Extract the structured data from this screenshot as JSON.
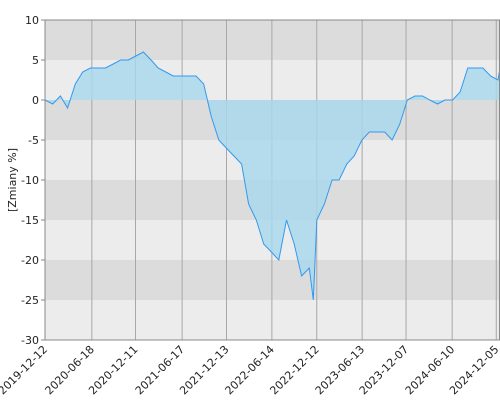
{
  "chart_data": {
    "type": "area",
    "y_label": "[Zmiany %]",
    "x": [
      "2019-12-12",
      "2020-01-12",
      "2020-02-12",
      "2020-03-12",
      "2020-04-12",
      "2020-05-12",
      "2020-06-12",
      "2020-07-12",
      "2020-08-12",
      "2020-09-12",
      "2020-10-12",
      "2020-11-12",
      "2020-12-12",
      "2021-01-12",
      "2021-02-12",
      "2021-03-12",
      "2021-04-12",
      "2021-05-12",
      "2021-06-12",
      "2021-07-12",
      "2021-08-12",
      "2021-09-12",
      "2021-10-12",
      "2021-11-12",
      "2021-12-12",
      "2022-01-12",
      "2022-02-12",
      "2022-03-12",
      "2022-04-12",
      "2022-05-12",
      "2022-06-12",
      "2022-07-12",
      "2022-08-12",
      "2022-09-12",
      "2022-10-12",
      "2022-11-12",
      "2022-11-28",
      "2022-12-12",
      "2023-01-12",
      "2023-02-12",
      "2023-03-12",
      "2023-04-12",
      "2023-05-12",
      "2023-06-12",
      "2023-07-12",
      "2023-08-12",
      "2023-09-12",
      "2023-10-12",
      "2023-11-12",
      "2023-12-12",
      "2024-01-12",
      "2024-02-12",
      "2024-03-12",
      "2024-04-12",
      "2024-05-12",
      "2024-06-12",
      "2024-07-12",
      "2024-08-12",
      "2024-09-12",
      "2024-10-12",
      "2024-11-12",
      "2024-12-12",
      "2024-12-20"
    ],
    "values": [
      0,
      -0.5,
      0.5,
      -1,
      2,
      3.5,
      4,
      4,
      4,
      4.5,
      5,
      5,
      5.5,
      6,
      5,
      4,
      3.5,
      3,
      3,
      3,
      3,
      2,
      -2,
      -5,
      -6,
      -7,
      -8,
      -13,
      -15,
      -18,
      -19,
      -20,
      -15,
      -18,
      -22,
      -21,
      -25,
      -15,
      -13,
      -10,
      -10,
      -8,
      -7,
      -5,
      -4,
      -4,
      -4,
      -5,
      -3,
      0,
      0.5,
      0.5,
      0,
      -0.5,
      0,
      0,
      1,
      4,
      4,
      4,
      3,
      2.5,
      4
    ],
    "color": "#3399ee",
    "fill": "#a8d8ec",
    "xlim": [
      "2019-12-12",
      "2024-12-20"
    ],
    "xticks": [
      "2019-12-12",
      "2020-06-18",
      "2020-12-11",
      "2021-06-17",
      "2021-12-13",
      "2022-06-14",
      "2022-12-12",
      "2023-06-13",
      "2023-12-07",
      "2024-06-10",
      "2024-12-05"
    ],
    "ylim": [
      -30,
      10
    ],
    "yticks": [
      -30,
      -25,
      -20,
      -15,
      -10,
      -5,
      0,
      5,
      10
    ],
    "grid": true
  }
}
